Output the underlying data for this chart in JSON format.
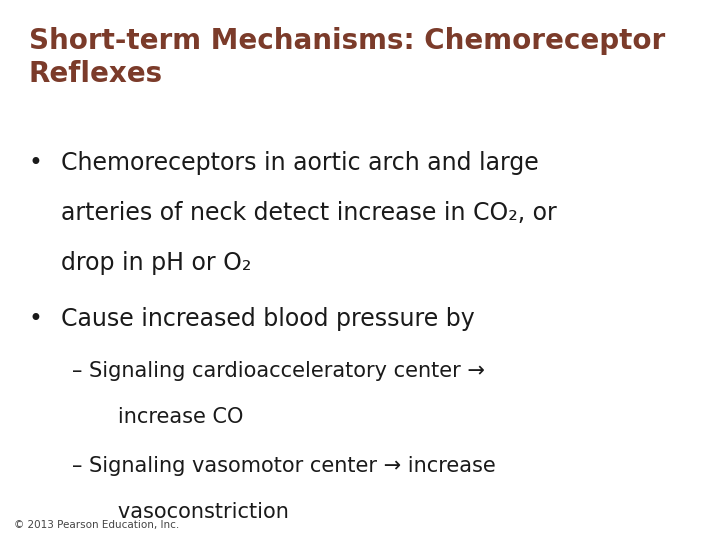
{
  "background_color": "#ffffff",
  "title_line1": "Short-term Mechanisms: Chemoreceptor",
  "title_line2": "Reflexes",
  "title_color": "#7B3B2A",
  "title_fontsize": 20,
  "body_color": "#1a1a1a",
  "body_fontsize": 17,
  "sub_fontsize": 15,
  "footer": "© 2013 Pearson Education, Inc.",
  "footer_fontsize": 7.5,
  "bullet1_line1": "Chemoreceptors in aortic arch and large",
  "bullet1_line2": "arteries of neck detect increase in CO₂, or",
  "bullet1_line3": "drop in pH or O₂",
  "bullet2": "Cause increased blood pressure by",
  "sub1_line1": "– Signaling cardioacceleratory center →",
  "sub1_line2": "   increase CO",
  "sub2_line1": "– Signaling vasomotor center → increase",
  "sub2_line2": "   vasoconstriction"
}
